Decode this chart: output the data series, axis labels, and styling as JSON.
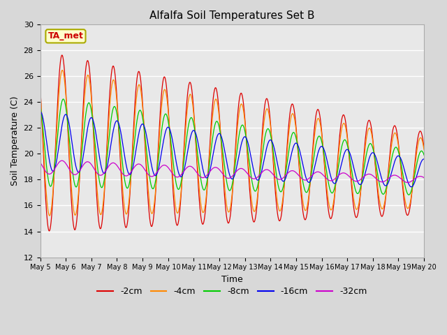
{
  "title": "Alfalfa Soil Temperatures Set B",
  "xlabel": "Time",
  "ylabel": "Soil Temperature (C)",
  "ylim": [
    12,
    30
  ],
  "yticks": [
    12,
    14,
    16,
    18,
    20,
    22,
    24,
    26,
    28,
    30
  ],
  "xtick_labels": [
    "May 5",
    "May 6",
    "May 7",
    "May 8",
    "May 9",
    "May 10",
    "May 11",
    "May 12",
    "May 13",
    "May 14",
    "May 15",
    "May 16",
    "May 17",
    "May 18",
    "May 19",
    "May 20"
  ],
  "line_colors": {
    "-2cm": "#dd0000",
    "-4cm": "#ff8800",
    "-8cm": "#00cc00",
    "-16cm": "#0000ee",
    "-32cm": "#cc00cc"
  },
  "legend_labels": [
    "-2cm",
    "-4cm",
    "-8cm",
    "-16cm",
    "-32cm"
  ],
  "annotation_text": "TA_met",
  "annotation_color": "#cc0000",
  "annotation_bg": "#ffffcc",
  "annotation_border": "#aaaa00",
  "fig_facecolor": "#d8d8d8",
  "axes_facecolor": "#e8e8e8",
  "n_days": 15,
  "amp_start": [
    7.0,
    5.8,
    3.5,
    2.3,
    0.55
  ],
  "amp_end": [
    3.2,
    2.7,
    1.7,
    1.1,
    0.25
  ],
  "mean_start": [
    21.0,
    21.0,
    21.0,
    21.0,
    19.0
  ],
  "mean_end": [
    18.5,
    18.5,
    18.5,
    18.5,
    18.0
  ],
  "phase_lag_hours": [
    0.0,
    0.3,
    1.2,
    3.5,
    0.0
  ],
  "peak_hour": 14.5
}
